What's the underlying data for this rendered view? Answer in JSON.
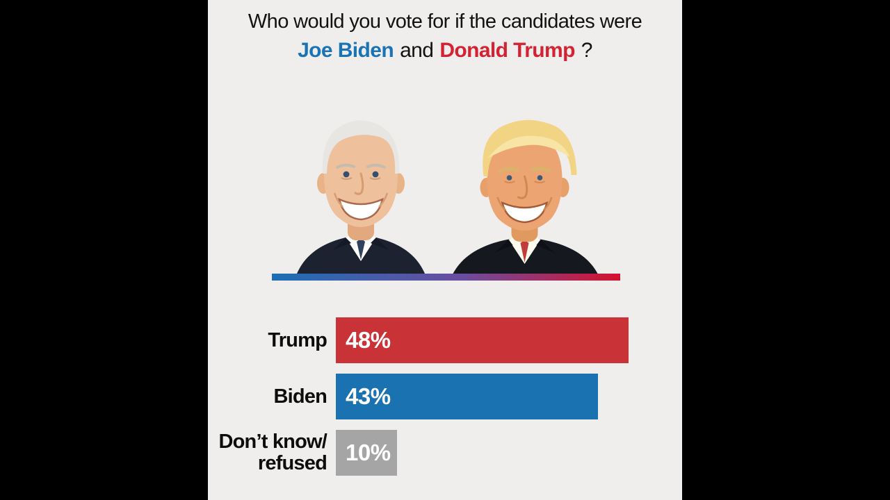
{
  "frame": {
    "letterbox_color": "#000000",
    "canvas_color": "#efeeed"
  },
  "title": {
    "line1": "Who would you vote for if the candidates were",
    "biden_name": "Joe Biden",
    "conjunction": "and",
    "trump_name": "Donald Trump",
    "question_mark": "?"
  },
  "colors": {
    "title_text": "#121212",
    "biden_blue": "#1a73b5",
    "trump_red": "#d42233",
    "bar_red": "#c93236",
    "bar_blue": "#1b72b0",
    "bar_gray": "#a5a5a5",
    "divider_gradient_left": "#1c6fb4",
    "divider_gradient_mid": "#6b4c9f",
    "divider_gradient_right": "#d5122e"
  },
  "photos": {
    "left_subject": "Joe Biden headshot",
    "right_subject": "Donald Trump headshot"
  },
  "chart_data": {
    "type": "bar",
    "orientation": "horizontal",
    "title": "Who would you vote for if the candidates were Joe Biden and Donald Trump?",
    "categories": [
      "Trump",
      "Biden",
      "Don’t know/refused"
    ],
    "values": [
      48,
      43,
      10
    ],
    "unit": "%",
    "xlim": [
      0,
      100
    ],
    "grid": false,
    "legend": "none",
    "value_labels_inside_bars": true,
    "rows": [
      {
        "label_line1": "Trump",
        "label_line2": "",
        "value": 48,
        "value_label": "48%",
        "color": "#c93236"
      },
      {
        "label_line1": "Biden",
        "label_line2": "",
        "value": 43,
        "value_label": "43%",
        "color": "#1b72b0"
      },
      {
        "label_line1": "Don’t know/",
        "label_line2": "refused",
        "value": 10,
        "value_label": "10%",
        "color": "#a5a5a5"
      }
    ]
  }
}
